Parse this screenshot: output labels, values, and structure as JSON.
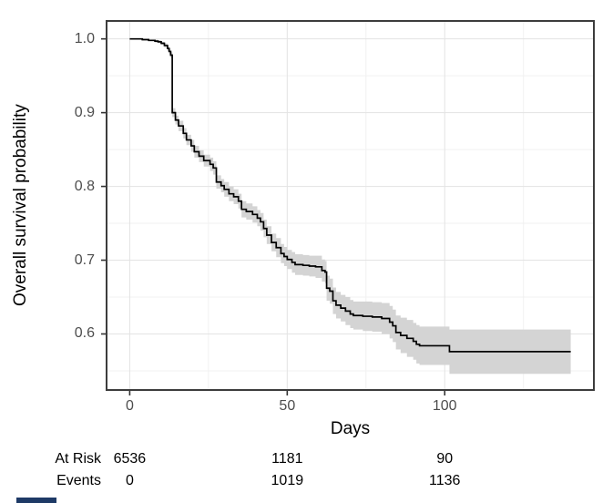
{
  "chart_data": {
    "type": "line",
    "subtype": "kaplan-meier-step-with-confidence-band",
    "title": "",
    "xlabel": "Days",
    "ylabel": "Overall survival probability",
    "grid": true,
    "legend": "none",
    "xlim": [
      -7.35,
      147.35
    ],
    "ylim": [
      0.524,
      1.0243
    ],
    "x_ticks": [
      {
        "v": 0,
        "label": "0"
      },
      {
        "v": 50,
        "label": "50"
      },
      {
        "v": 100,
        "label": "100"
      }
    ],
    "x_minor_ticks": [
      25,
      75,
      125
    ],
    "y_ticks": [
      {
        "v": 1.0,
        "label": "1.0"
      },
      {
        "v": 0.9,
        "label": "0.9"
      },
      {
        "v": 0.8,
        "label": "0.8"
      },
      {
        "v": 0.7,
        "label": "0.7"
      },
      {
        "v": 0.6,
        "label": "0.6"
      }
    ],
    "y_minor_ticks": [
      0.95,
      0.85,
      0.75,
      0.65,
      0.55
    ],
    "colors": {
      "line": "#000000",
      "band": "#d4d4d4",
      "grid_major": "#e3e3e3",
      "grid_minor": "#f1f1f1",
      "panel_border": "#3d3d3d",
      "tick": "#333333",
      "tick_label": "#4d4d4d",
      "title": "#000000",
      "accent_bar": "#1e3a66"
    },
    "series": [
      {
        "name": "Overall survival",
        "steps": [
          {
            "t": 0,
            "s": 1.0,
            "lo": 1.0,
            "hi": 1.0
          },
          {
            "t": 4,
            "s": 0.999,
            "lo": 0.998,
            "hi": 1.0
          },
          {
            "t": 6,
            "s": 0.998,
            "lo": 0.997,
            "hi": 0.999
          },
          {
            "t": 8,
            "s": 0.997,
            "lo": 0.995,
            "hi": 0.999
          },
          {
            "t": 9,
            "s": 0.996,
            "lo": 0.994,
            "hi": 0.998
          },
          {
            "t": 10,
            "s": 0.994,
            "lo": 0.992,
            "hi": 0.996
          },
          {
            "t": 11,
            "s": 0.991,
            "lo": 0.988,
            "hi": 0.994
          },
          {
            "t": 12,
            "s": 0.987,
            "lo": 0.984,
            "hi": 0.99
          },
          {
            "t": 12.5,
            "s": 0.983,
            "lo": 0.979,
            "hi": 0.987
          },
          {
            "t": 13,
            "s": 0.978,
            "lo": 0.974,
            "hi": 0.982
          },
          {
            "t": 13.5,
            "s": 0.9,
            "lo": 0.894,
            "hi": 0.906
          },
          {
            "t": 14.5,
            "s": 0.89,
            "lo": 0.884,
            "hi": 0.896
          },
          {
            "t": 15.5,
            "s": 0.882,
            "lo": 0.875,
            "hi": 0.889
          },
          {
            "t": 17,
            "s": 0.872,
            "lo": 0.865,
            "hi": 0.879
          },
          {
            "t": 18,
            "s": 0.863,
            "lo": 0.856,
            "hi": 0.87
          },
          {
            "t": 19.5,
            "s": 0.855,
            "lo": 0.847,
            "hi": 0.863
          },
          {
            "t": 20.5,
            "s": 0.847,
            "lo": 0.839,
            "hi": 0.855
          },
          {
            "t": 22,
            "s": 0.841,
            "lo": 0.833,
            "hi": 0.849
          },
          {
            "t": 23.5,
            "s": 0.835,
            "lo": 0.827,
            "hi": 0.843
          },
          {
            "t": 25.5,
            "s": 0.83,
            "lo": 0.821,
            "hi": 0.839
          },
          {
            "t": 26.5,
            "s": 0.825,
            "lo": 0.816,
            "hi": 0.834
          },
          {
            "t": 27.5,
            "s": 0.806,
            "lo": 0.797,
            "hi": 0.815
          },
          {
            "t": 29,
            "s": 0.801,
            "lo": 0.792,
            "hi": 0.81
          },
          {
            "t": 30,
            "s": 0.796,
            "lo": 0.786,
            "hi": 0.806
          },
          {
            "t": 31.5,
            "s": 0.79,
            "lo": 0.78,
            "hi": 0.8
          },
          {
            "t": 33,
            "s": 0.786,
            "lo": 0.776,
            "hi": 0.796
          },
          {
            "t": 34.5,
            "s": 0.78,
            "lo": 0.77,
            "hi": 0.79
          },
          {
            "t": 35.5,
            "s": 0.769,
            "lo": 0.758,
            "hi": 0.78
          },
          {
            "t": 37,
            "s": 0.766,
            "lo": 0.755,
            "hi": 0.777
          },
          {
            "t": 39,
            "s": 0.762,
            "lo": 0.751,
            "hi": 0.773
          },
          {
            "t": 40.5,
            "s": 0.757,
            "lo": 0.746,
            "hi": 0.768
          },
          {
            "t": 41.5,
            "s": 0.752,
            "lo": 0.74,
            "hi": 0.764
          },
          {
            "t": 42.5,
            "s": 0.743,
            "lo": 0.731,
            "hi": 0.755
          },
          {
            "t": 43.5,
            "s": 0.734,
            "lo": 0.722,
            "hi": 0.746
          },
          {
            "t": 45,
            "s": 0.724,
            "lo": 0.712,
            "hi": 0.736
          },
          {
            "t": 46.5,
            "s": 0.717,
            "lo": 0.704,
            "hi": 0.73
          },
          {
            "t": 48,
            "s": 0.709,
            "lo": 0.696,
            "hi": 0.722
          },
          {
            "t": 49,
            "s": 0.705,
            "lo": 0.692,
            "hi": 0.718
          },
          {
            "t": 50,
            "s": 0.701,
            "lo": 0.688,
            "hi": 0.714
          },
          {
            "t": 51.5,
            "s": 0.697,
            "lo": 0.683,
            "hi": 0.711
          },
          {
            "t": 52.5,
            "s": 0.694,
            "lo": 0.68,
            "hi": 0.708
          },
          {
            "t": 55,
            "s": 0.693,
            "lo": 0.679,
            "hi": 0.707
          },
          {
            "t": 57,
            "s": 0.692,
            "lo": 0.678,
            "hi": 0.706
          },
          {
            "t": 59,
            "s": 0.691,
            "lo": 0.676,
            "hi": 0.706
          },
          {
            "t": 61,
            "s": 0.686,
            "lo": 0.671,
            "hi": 0.701
          },
          {
            "t": 62,
            "s": 0.684,
            "lo": 0.669,
            "hi": 0.699
          },
          {
            "t": 62.5,
            "s": 0.662,
            "lo": 0.645,
            "hi": 0.679
          },
          {
            "t": 63.5,
            "s": 0.658,
            "lo": 0.641,
            "hi": 0.675
          },
          {
            "t": 64.5,
            "s": 0.645,
            "lo": 0.627,
            "hi": 0.663
          },
          {
            "t": 65.5,
            "s": 0.639,
            "lo": 0.621,
            "hi": 0.657
          },
          {
            "t": 67,
            "s": 0.635,
            "lo": 0.617,
            "hi": 0.653
          },
          {
            "t": 68.5,
            "s": 0.631,
            "lo": 0.612,
            "hi": 0.65
          },
          {
            "t": 70,
            "s": 0.627,
            "lo": 0.608,
            "hi": 0.646
          },
          {
            "t": 71,
            "s": 0.625,
            "lo": 0.606,
            "hi": 0.644
          },
          {
            "t": 74,
            "s": 0.624,
            "lo": 0.604,
            "hi": 0.644
          },
          {
            "t": 77,
            "s": 0.623,
            "lo": 0.603,
            "hi": 0.643
          },
          {
            "t": 80,
            "s": 0.621,
            "lo": 0.6,
            "hi": 0.642
          },
          {
            "t": 82.5,
            "s": 0.616,
            "lo": 0.594,
            "hi": 0.638
          },
          {
            "t": 83.5,
            "s": 0.611,
            "lo": 0.589,
            "hi": 0.633
          },
          {
            "t": 84.5,
            "s": 0.602,
            "lo": 0.579,
            "hi": 0.625
          },
          {
            "t": 86,
            "s": 0.598,
            "lo": 0.574,
            "hi": 0.622
          },
          {
            "t": 88,
            "s": 0.594,
            "lo": 0.569,
            "hi": 0.619
          },
          {
            "t": 90,
            "s": 0.59,
            "lo": 0.565,
            "hi": 0.615
          },
          {
            "t": 91,
            "s": 0.586,
            "lo": 0.56,
            "hi": 0.612
          },
          {
            "t": 92,
            "s": 0.584,
            "lo": 0.558,
            "hi": 0.61
          },
          {
            "t": 101.5,
            "s": 0.576,
            "lo": 0.546,
            "hi": 0.606
          },
          {
            "t": 140,
            "s": 0.576,
            "lo": 0.546,
            "hi": 0.606
          }
        ]
      }
    ],
    "risk_table": {
      "row_labels": [
        "At Risk",
        "Events"
      ],
      "times": [
        0,
        50,
        100
      ],
      "rows": [
        [
          "6536",
          "1181",
          "90"
        ],
        [
          "0",
          "1019",
          "1136"
        ]
      ]
    }
  }
}
